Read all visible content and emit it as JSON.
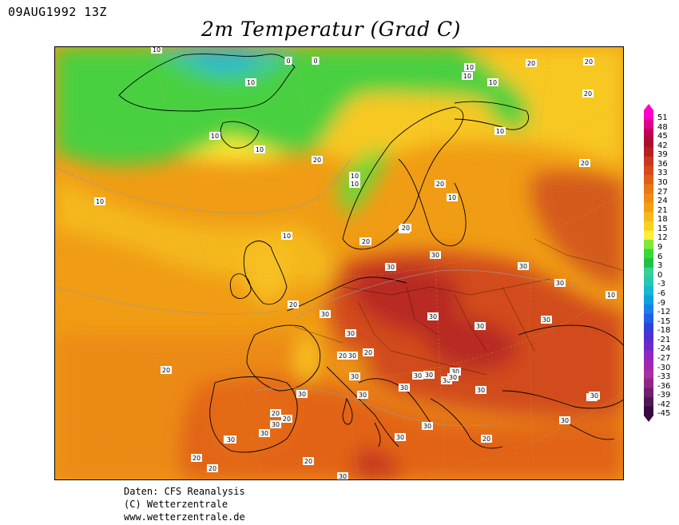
{
  "header": {
    "timestamp": "09AUG1992 13Z",
    "title": "2m Temperatur (Grad C)"
  },
  "footer": {
    "source": "Daten: CFS Reanalysis",
    "copyright": "(C) Wetterzentrale",
    "url": "www.wetterzentrale.de"
  },
  "legend": {
    "levels": [
      "51",
      "48",
      "45",
      "42",
      "39",
      "36",
      "33",
      "30",
      "27",
      "24",
      "21",
      "18",
      "15",
      "12",
      "9",
      "6",
      "3",
      "0",
      "-3",
      "-6",
      "-9",
      "-12",
      "-15",
      "-18",
      "-21",
      "-24",
      "-27",
      "-30",
      "-33",
      "-36",
      "-39",
      "-42",
      "-45"
    ],
    "colors": [
      "#ff00cc",
      "#e0008c",
      "#c00050",
      "#a8102c",
      "#b82020",
      "#c83820",
      "#d84a1a",
      "#e06018",
      "#e87818",
      "#f08c14",
      "#f0a010",
      "#f4b81c",
      "#f8d020",
      "#fcee3c",
      "#80e838",
      "#38d838",
      "#20c040",
      "#38d098",
      "#28c8b0",
      "#18b8d0",
      "#10a0e0",
      "#1880e8",
      "#2060e8",
      "#3040d8",
      "#5030d0",
      "#7028c8",
      "#9028c0",
      "#a028b0",
      "#a830a0",
      "#902888",
      "#702070",
      "#501850",
      "#380a40"
    ]
  },
  "map_labels": [
    "20",
    "10",
    "0",
    "0",
    "10",
    "10",
    "10",
    "10",
    "20",
    "20",
    "10",
    "10",
    "20",
    "10",
    "10",
    "10",
    "10",
    "10",
    "20",
    "20",
    "20",
    "10",
    "20",
    "20",
    "30",
    "20",
    "30",
    "30",
    "30",
    "20",
    "10",
    "30",
    "30",
    "30",
    "30",
    "30",
    "30",
    "20",
    "20",
    "30",
    "30",
    "30",
    "30",
    "30",
    "30",
    "30",
    "30",
    "30",
    "30",
    "30",
    "20",
    "30",
    "30",
    "20",
    "20",
    "30",
    "30",
    "30",
    "30",
    "20",
    "30",
    "20",
    "20",
    "20",
    "30",
    "30"
  ]
}
